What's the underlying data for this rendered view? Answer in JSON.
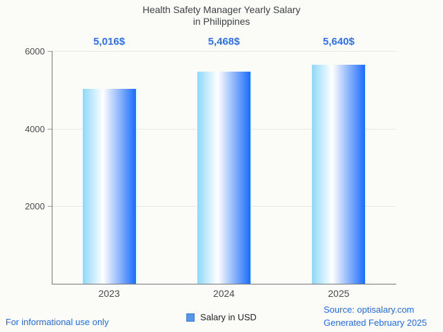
{
  "title": {
    "line1": "Health Safety Manager Yearly Salary",
    "line2": "in Philippines"
  },
  "chart_data": {
    "type": "bar",
    "title": "Health Safety Manager Yearly Salary in Philippines",
    "categories": [
      "2023",
      "2024",
      "2025"
    ],
    "values": [
      5016,
      5468,
      5640
    ],
    "value_labels": [
      "5,016$",
      "5,468$",
      "5,640$"
    ],
    "series": [
      {
        "name": "Salary in USD",
        "values": [
          5016,
          5468,
          5640
        ]
      }
    ],
    "xlabel": "",
    "ylabel": "",
    "ylim": [
      0,
      6000
    ],
    "yticks": [
      2000,
      4000,
      6000
    ],
    "grid": true,
    "legend_position": "bottom",
    "annotation_color": "#2b6ff2",
    "bar_gradient": [
      "#8fd8f9",
      "#ffffff",
      "#1b6cfb"
    ]
  },
  "legend": {
    "label": "Salary in USD",
    "swatch_fill": "#5596e8",
    "swatch_border": "#3c79cf"
  },
  "footer": {
    "left_text": "For informational use only",
    "source_text": "Source: optisalary.com",
    "generated_text": "Generated February 2025",
    "link_color": "#1f6bf1"
  }
}
